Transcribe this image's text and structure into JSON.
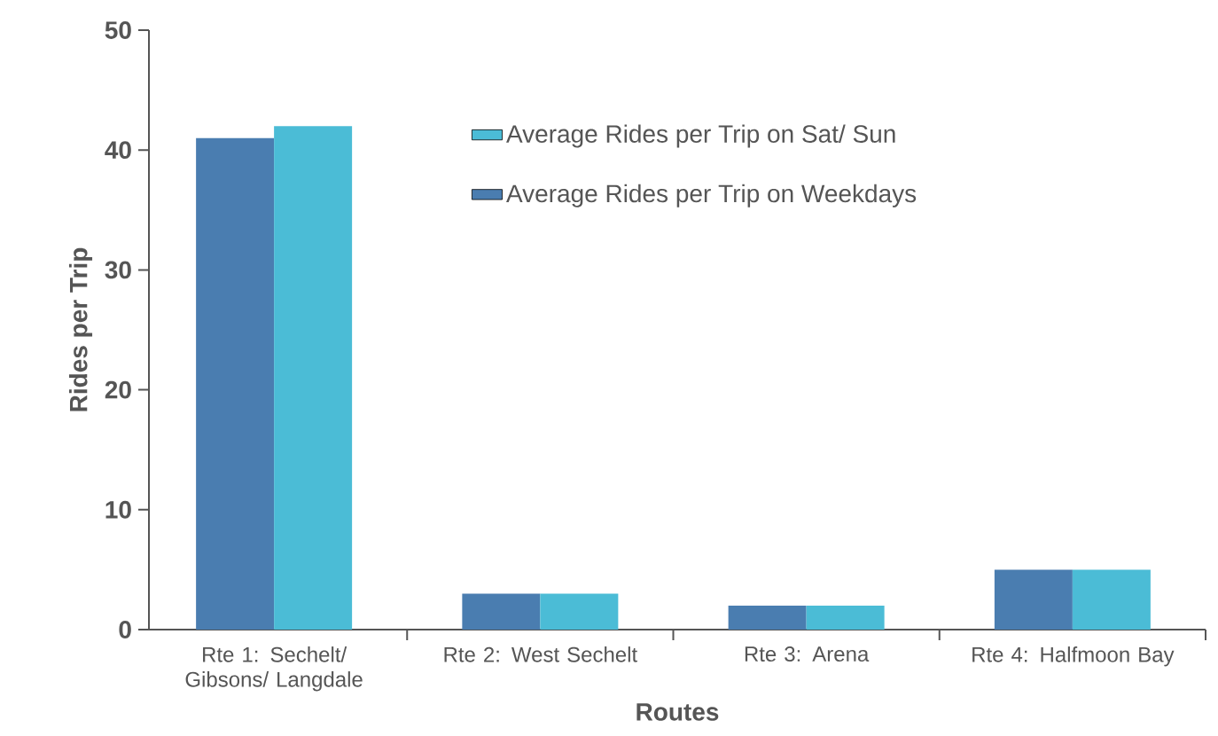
{
  "chart_data": {
    "type": "bar",
    "xlabel": "Routes",
    "ylabel": "Rides per Trip",
    "categories": [
      "Rte 1: Sechelt/ Gibsons/ Langdale",
      "Rte 2: West Sechelt",
      "Rte 3: Arena",
      "Rte 4: Halfmoon Bay"
    ],
    "series": [
      {
        "name": "Average Rides per Trip on Weekdays",
        "color": "#4a7db0",
        "values": [
          41,
          3,
          2,
          5
        ]
      },
      {
        "name": "Average Rides per Trip on Sat/ Sun",
        "color": "#4bbcd6",
        "values": [
          42,
          3,
          2,
          5
        ]
      }
    ],
    "ylim": [
      0,
      50
    ],
    "yticks": [
      0,
      10,
      20,
      30,
      40,
      50
    ],
    "grid": false,
    "legend": "top right"
  }
}
